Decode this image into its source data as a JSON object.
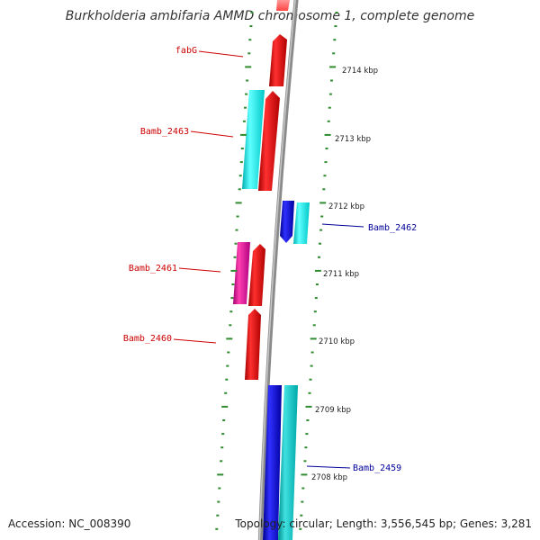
{
  "title": "Burkholderia ambifaria AMMD chromosome 1, complete genome",
  "footer": {
    "accession": "Accession: NC_008390",
    "summary": "Topology: circular; Length: 3,556,545 bp; Genes: 3,281"
  },
  "colors": {
    "background": "#ffffff",
    "backbone": "#8a8a8a",
    "tick": "#2e8b2e",
    "forward_gene": "#ee1111",
    "forward_gene_alt": "#00e6e6",
    "reverse_gene": "#1010ee",
    "reverse_gene_alt": "#00d0d0",
    "pink_gene": "#e0209a",
    "forward_label": "#cc0000",
    "reverse_label": "#000099"
  },
  "kbp_ticks": [
    "2714 kbp",
    "2713 kbp",
    "2712 kbp",
    "2711 kbp",
    "2710 kbp",
    "2709 kbp",
    "2708 kbp"
  ],
  "gene_labels": [
    {
      "text": "fabG",
      "strand": "forward"
    },
    {
      "text": "Bamb_2463",
      "strand": "forward"
    },
    {
      "text": "Bamb_2462",
      "strand": "reverse"
    },
    {
      "text": "Bamb_2461",
      "strand": "forward"
    },
    {
      "text": "Bamb_2460",
      "strand": "forward"
    },
    {
      "text": "Bamb_2459",
      "strand": "reverse"
    }
  ]
}
